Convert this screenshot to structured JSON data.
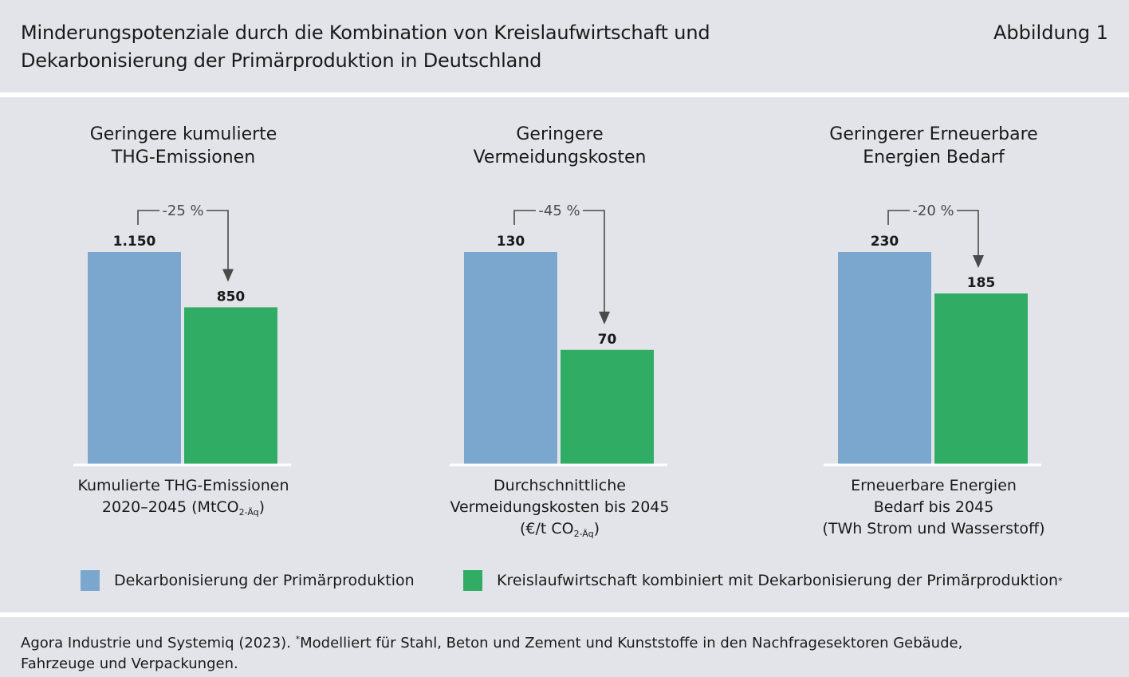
{
  "header": {
    "title_line1": "Minderungspotenziale durch die Kombination von Kreislaufwirtschaft und",
    "title_line2": "Dekarbonisierung der Primärproduktion in Deutschland",
    "figure_label": "Abbildung 1"
  },
  "colors": {
    "primary": "#7ba7cf",
    "circular": "#30ac65",
    "background": "#e3e4e9"
  },
  "chart_data": [
    {
      "type": "bar",
      "title_line1": "Geringere kumulierte",
      "title_line2": "THG-Emissionen",
      "categories": [
        "Dekarbonisierung der Primärproduktion",
        "Kreislaufwirtschaft kombiniert mit Dekarbonisierung der Primärproduktion"
      ],
      "values": [
        1150,
        850
      ],
      "value_labels": [
        "1.150",
        "850"
      ],
      "change_label": "-25 %",
      "ylim": [
        0,
        1150
      ],
      "xlabel_line1": "Kumulierte THG-Emissionen",
      "xlabel_line2_pre": "2020–2045 (MtCO",
      "xlabel_line2_sub": "2-Äq",
      "xlabel_line2_post": ")",
      "xlabel_line3_pre": "",
      "xlabel_line3_sub": "",
      "xlabel_line3_post": ""
    },
    {
      "type": "bar",
      "title_line1": "Geringere",
      "title_line2": "Vermeidungskosten",
      "categories": [
        "Dekarbonisierung der Primärproduktion",
        "Kreislaufwirtschaft kombiniert mit Dekarbonisierung der Primärproduktion"
      ],
      "values": [
        130,
        70
      ],
      "value_labels": [
        "130",
        "70"
      ],
      "change_label": "-45 %",
      "ylim": [
        0,
        130
      ],
      "xlabel_line1": "Durchschnittliche",
      "xlabel_line2_pre": "Vermeidungskosten bis 2045",
      "xlabel_line2_sub": "",
      "xlabel_line2_post": "",
      "xlabel_line3_pre": "(€/t CO",
      "xlabel_line3_sub": "2-Äq",
      "xlabel_line3_post": ")"
    },
    {
      "type": "bar",
      "title_line1": "Geringerer Erneuerbare",
      "title_line2": "Energien Bedarf",
      "categories": [
        "Dekarbonisierung der Primärproduktion",
        "Kreislaufwirtschaft kombiniert mit Dekarbonisierung der Primärproduktion"
      ],
      "values": [
        230,
        185
      ],
      "value_labels": [
        "230",
        "185"
      ],
      "change_label": "-20 %",
      "ylim": [
        0,
        230
      ],
      "xlabel_line1": "Erneuerbare Energien",
      "xlabel_line2_pre": "Bedarf bis 2045",
      "xlabel_line2_sub": "",
      "xlabel_line2_post": "",
      "xlabel_line3_pre": "(TWh Strom und Wasserstoff)",
      "xlabel_line3_sub": "",
      "xlabel_line3_post": ""
    }
  ],
  "legend": [
    {
      "label": "Dekarbonisierung der Primärproduktion",
      "marker": ""
    },
    {
      "label": "Kreislaufwirtschaft kombiniert mit Dekarbonisierung der Primärproduktion",
      "marker": "*"
    }
  ],
  "footer": {
    "source": "Agora Industrie und Systemiq (2023). ",
    "marker": "*",
    "note_line1": "Modelliert für Stahl, Beton und Zement und Kunststoffe in den Nachfragesektoren Gebäude,",
    "note_line2": "Fahrzeuge und Verpackungen."
  }
}
